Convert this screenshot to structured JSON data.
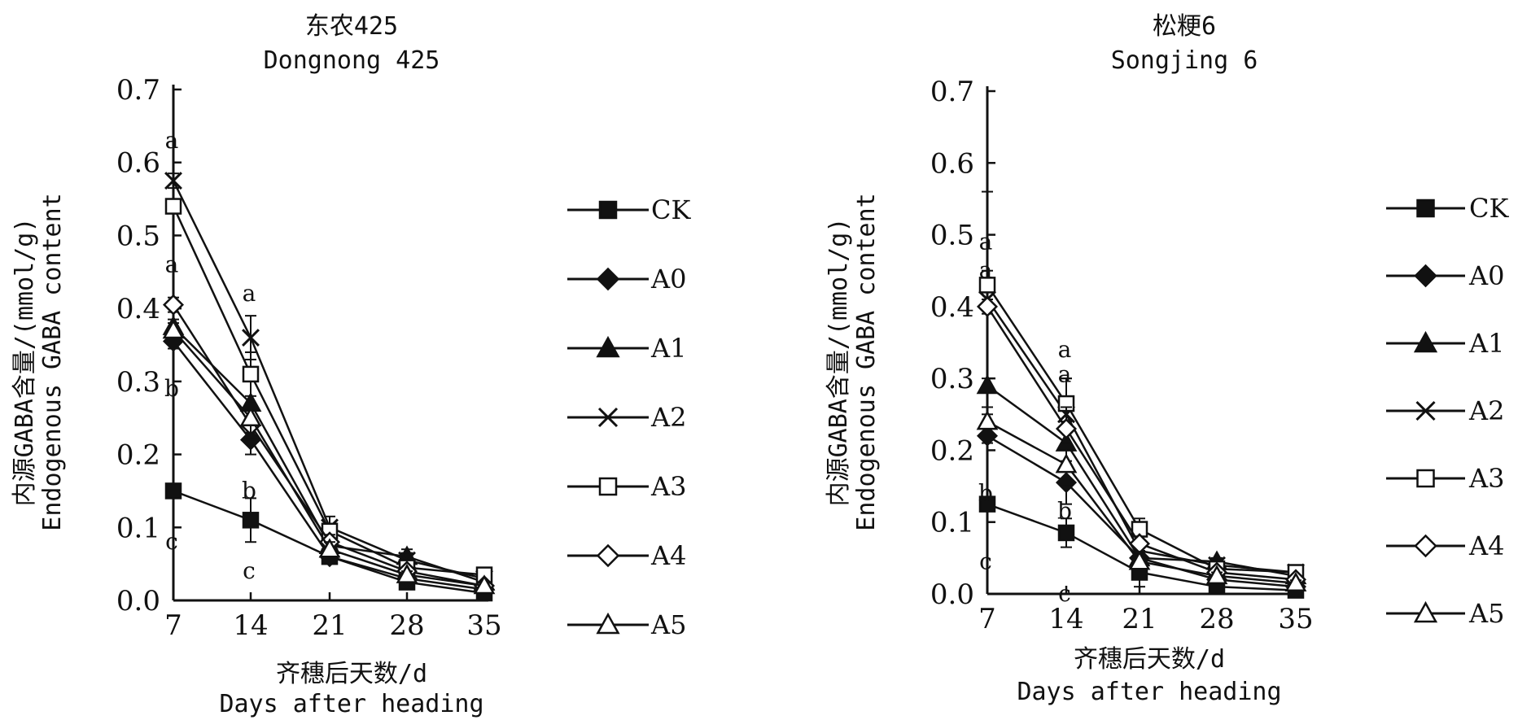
{
  "chart_data": [
    {
      "type": "line",
      "title": "东农425",
      "subtitle": "Dongnong 425",
      "xlabel": "齐穗后天数/d",
      "xlabel_en": "Days after heading",
      "ylabel": "内源GABA含量/(mmol/g)",
      "ylabel_en": "Endogenous GABA content",
      "x": [
        7,
        14,
        21,
        28,
        35
      ],
      "x_tick_labels": [
        "7",
        "14",
        "21",
        "28",
        "35"
      ],
      "y_tick_labels": [
        "0.0",
        "0.1",
        "0.2",
        "0.3",
        "0.4",
        "0.5",
        "0.6",
        "0.7"
      ],
      "ylim": [
        0,
        0.7
      ],
      "legend_position": "right",
      "series": [
        {
          "name": "CK",
          "marker": "filled-square",
          "values": [
            0.15,
            0.11,
            0.06,
            0.025,
            0.01
          ],
          "errors": [
            0.008,
            0.03,
            0.005,
            0.005,
            0.004
          ]
        },
        {
          "name": "A0",
          "marker": "filled-diamond",
          "values": [
            0.355,
            0.22,
            0.06,
            0.03,
            0.015
          ],
          "errors": [
            0.01,
            0.02,
            0.005,
            0.005,
            0.004
          ]
        },
        {
          "name": "A1",
          "marker": "filled-triangle",
          "values": [
            0.375,
            0.27,
            0.075,
            0.06,
            0.025
          ],
          "errors": [
            0.01,
            0.03,
            0.01,
            0.01,
            0.004
          ]
        },
        {
          "name": "A2",
          "marker": "cross",
          "values": [
            0.575,
            0.36,
            0.1,
            0.055,
            0.03
          ],
          "errors": [
            0.01,
            0.03,
            0.015,
            0.01,
            0.005
          ]
        },
        {
          "name": "A3",
          "marker": "open-square",
          "values": [
            0.54,
            0.31,
            0.095,
            0.045,
            0.035
          ],
          "errors": [
            0.01,
            0.03,
            0.01,
            0.01,
            0.005
          ]
        },
        {
          "name": "A4",
          "marker": "open-diamond",
          "values": [
            0.405,
            0.24,
            0.08,
            0.04,
            0.02
          ],
          "errors": [
            0.01,
            0.02,
            0.01,
            0.005,
            0.004
          ]
        },
        {
          "name": "A5",
          "marker": "open-triangle",
          "values": [
            0.37,
            0.25,
            0.07,
            0.035,
            0.02
          ],
          "errors": [
            0.01,
            0.02,
            0.01,
            0.005,
            0.004
          ]
        }
      ],
      "annotations": [
        {
          "text": "a",
          "x": 7,
          "y": 0.63
        },
        {
          "text": "a",
          "x": 7,
          "y": 0.46
        },
        {
          "text": "b",
          "x": 7,
          "y": 0.29
        },
        {
          "text": "c",
          "x": 7,
          "y": 0.08
        },
        {
          "text": "a",
          "x": 14,
          "y": 0.42
        },
        {
          "text": "b",
          "x": 14,
          "y": 0.15
        },
        {
          "text": "c",
          "x": 14,
          "y": 0.04
        }
      ]
    },
    {
      "type": "line",
      "title": "松粳6",
      "subtitle": "Songjing 6",
      "xlabel": "齐穗后天数/d",
      "xlabel_en": "Days after heading",
      "ylabel": "内源GABA含量/(mmol/g)",
      "ylabel_en": "Endogenous GABA content",
      "x": [
        7,
        14,
        21,
        28,
        35
      ],
      "x_tick_labels": [
        "7",
        "14",
        "21",
        "28",
        "35"
      ],
      "y_tick_labels": [
        "0.0",
        "0.1",
        "0.2",
        "0.3",
        "0.4",
        "0.5",
        "0.6",
        "0.7"
      ],
      "ylim": [
        0,
        0.7
      ],
      "legend_position": "right",
      "series": [
        {
          "name": "CK",
          "marker": "filled-square",
          "values": [
            0.125,
            0.085,
            0.03,
            0.01,
            0.005
          ],
          "errors": [
            0.01,
            0.02,
            0.02,
            0.005,
            0.004
          ]
        },
        {
          "name": "A0",
          "marker": "filled-diamond",
          "values": [
            0.22,
            0.155,
            0.05,
            0.02,
            0.01
          ],
          "errors": [
            0.01,
            0.03,
            0.01,
            0.005,
            0.004
          ]
        },
        {
          "name": "A1",
          "marker": "filled-triangle",
          "values": [
            0.29,
            0.21,
            0.05,
            0.045,
            0.025
          ],
          "errors": [
            0.01,
            0.03,
            0.01,
            0.005,
            0.004
          ]
        },
        {
          "name": "A2",
          "marker": "cross",
          "values": [
            0.41,
            0.25,
            0.06,
            0.04,
            0.03
          ],
          "errors": [
            0.15,
            0.05,
            0.01,
            0.005,
            0.004
          ]
        },
        {
          "name": "A3",
          "marker": "open-square",
          "values": [
            0.43,
            0.265,
            0.09,
            0.035,
            0.03
          ],
          "errors": [
            0.02,
            0.035,
            0.015,
            0.005,
            0.004
          ]
        },
        {
          "name": "A4",
          "marker": "open-diamond",
          "values": [
            0.4,
            0.23,
            0.07,
            0.03,
            0.02
          ],
          "errors": [
            0.01,
            0.03,
            0.01,
            0.005,
            0.004
          ]
        },
        {
          "name": "A5",
          "marker": "open-triangle",
          "values": [
            0.24,
            0.18,
            0.045,
            0.025,
            0.015
          ],
          "errors": [
            0.01,
            0.03,
            0.01,
            0.005,
            0.004
          ]
        }
      ],
      "annotations": [
        {
          "text": "a",
          "x": 7,
          "y": 0.49
        },
        {
          "text": "a",
          "x": 7,
          "y": 0.45
        },
        {
          "text": "b",
          "x": 7,
          "y": 0.14
        },
        {
          "text": "c",
          "x": 7,
          "y": 0.045
        },
        {
          "text": "a",
          "x": 14,
          "y": 0.34
        },
        {
          "text": "a",
          "x": 14,
          "y": 0.305
        },
        {
          "text": "b",
          "x": 14,
          "y": 0.115
        },
        {
          "text": "c",
          "x": 14,
          "y": 0.0
        }
      ]
    }
  ]
}
